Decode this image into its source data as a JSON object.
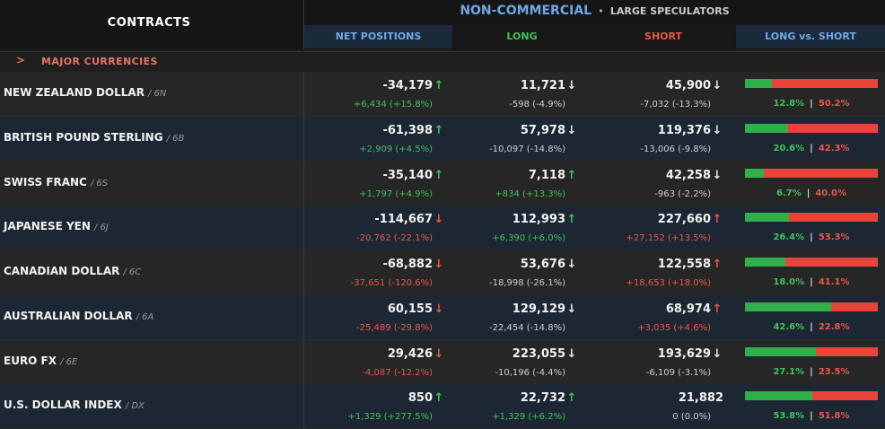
{
  "header": {
    "contracts": "CONTRACTS",
    "title": "NON-COMMERCIAL",
    "separator": "•",
    "subtitle": "LARGE SPECULATORS",
    "columns": [
      "NET POSITIONS",
      "LONG",
      "SHORT",
      "LONG vs. SHORT"
    ],
    "column_colors": [
      "#6fa8e8",
      "#3fc25b",
      "#e8574a",
      "#6fa8e8"
    ]
  },
  "section": {
    "chevron": ">",
    "label": "MAJOR CURRENCIES"
  },
  "rows": [
    {
      "name": "NEW ZEALAND DOLLAR",
      "code": "/ 6N",
      "net": "-34,179",
      "net_dir": "up",
      "net_chg": "+6,434 (+15.8%)",
      "net_chg_tone": "pos",
      "long": "11,721",
      "long_dir": "down",
      "long_chg": "-598 (-4.9%)",
      "long_chg_tone": "neu",
      "short": "45,900",
      "short_dir": "down",
      "short_chg": "-7,032 (-13.3%)",
      "short_chg_tone": "neu",
      "long_pct": "12.8%",
      "short_pct": "50.2%",
      "long_ratio": 0.203
    },
    {
      "name": "BRITISH POUND STERLING",
      "code": "/ 6B",
      "net": "-61,398",
      "net_dir": "up",
      "net_chg": "+2,909 (+4.5%)",
      "net_chg_tone": "pos",
      "long": "57,978",
      "long_dir": "down",
      "long_chg": "-10,097 (-14.8%)",
      "long_chg_tone": "neu",
      "short": "119,376",
      "short_dir": "down",
      "short_chg": "-13,006 (-9.8%)",
      "short_chg_tone": "neu",
      "long_pct": "20.6%",
      "short_pct": "42.3%",
      "long_ratio": 0.327
    },
    {
      "name": "SWISS FRANC",
      "code": "/ 6S",
      "net": "-35,140",
      "net_dir": "up",
      "net_chg": "+1,797 (+4.9%)",
      "net_chg_tone": "pos",
      "long": "7,118",
      "long_dir": "up",
      "long_chg": "+834 (+13.3%)",
      "long_chg_tone": "pos",
      "short": "42,258",
      "short_dir": "down",
      "short_chg": "-963 (-2.2%)",
      "short_chg_tone": "neu",
      "long_pct": "6.7%",
      "short_pct": "40.0%",
      "long_ratio": 0.144
    },
    {
      "name": "JAPANESE YEN",
      "code": "/ 6J",
      "net": "-114,667",
      "net_dir": "down-red",
      "net_chg": "-20,762 (-22.1%)",
      "net_chg_tone": "neg",
      "long": "112,993",
      "long_dir": "up",
      "long_chg": "+6,390 (+6.0%)",
      "long_chg_tone": "pos",
      "short": "227,660",
      "short_dir": "up-red",
      "short_chg": "+27,152 (+13.5%)",
      "short_chg_tone": "neg",
      "long_pct": "26.4%",
      "short_pct": "53.3%",
      "long_ratio": 0.332
    },
    {
      "name": "CANADIAN DOLLAR",
      "code": "/ 6C",
      "net": "-68,882",
      "net_dir": "down-red",
      "net_chg": "-37,651 (-120.6%)",
      "net_chg_tone": "neg",
      "long": "53,676",
      "long_dir": "down",
      "long_chg": "-18,998 (-26.1%)",
      "long_chg_tone": "neu",
      "short": "122,558",
      "short_dir": "up-red",
      "short_chg": "+18,653 (+18.0%)",
      "short_chg_tone": "neg",
      "long_pct": "18.0%",
      "short_pct": "41.1%",
      "long_ratio": 0.305
    },
    {
      "name": "AUSTRALIAN DOLLAR",
      "code": "/ 6A",
      "net": "60,155",
      "net_dir": "down-red",
      "net_chg": "-25,489 (-29.8%)",
      "net_chg_tone": "neg",
      "long": "129,129",
      "long_dir": "down",
      "long_chg": "-22,454 (-14.8%)",
      "long_chg_tone": "neu",
      "short": "68,974",
      "short_dir": "up-red",
      "short_chg": "+3,035 (+4.6%)",
      "short_chg_tone": "neg",
      "long_pct": "42.6%",
      "short_pct": "22.8%",
      "long_ratio": 0.652
    },
    {
      "name": "EURO FX",
      "code": "/ 6E",
      "net": "29,426",
      "net_dir": "down-red",
      "net_chg": "-4,087 (-12.2%)",
      "net_chg_tone": "neg",
      "long": "223,055",
      "long_dir": "down",
      "long_chg": "-10,196 (-4.4%)",
      "long_chg_tone": "neu",
      "short": "193,629",
      "short_dir": "down",
      "short_chg": "-6,109 (-3.1%)",
      "short_chg_tone": "neu",
      "long_pct": "27.1%",
      "short_pct": "23.5%",
      "long_ratio": 0.536
    },
    {
      "name": "U.S. DOLLAR INDEX",
      "code": "/ DX",
      "net": "850",
      "net_dir": "up",
      "net_chg": "+1,329 (+277.5%)",
      "net_chg_tone": "pos",
      "long": "22,732",
      "long_dir": "up",
      "long_chg": "+1,329 (+6.2%)",
      "long_chg_tone": "pos",
      "short": "21,882",
      "short_dir": "",
      "short_chg": "0 (0.0%)",
      "short_chg_tone": "neu",
      "long_pct": "53.8%",
      "short_pct": "51.8%",
      "long_ratio": 0.51
    }
  ]
}
